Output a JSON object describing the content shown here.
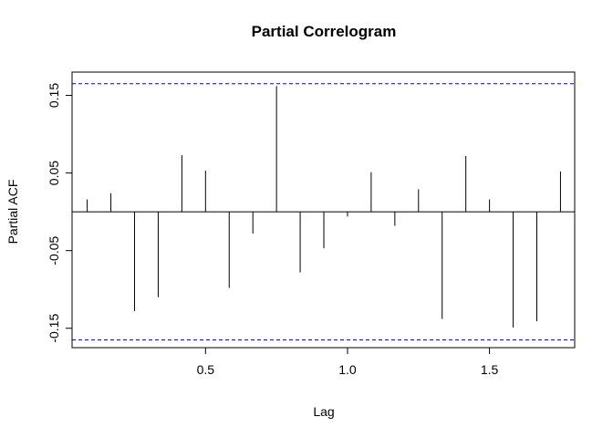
{
  "chart_data": {
    "type": "bar",
    "title": "Partial Correlogram",
    "xlabel": "Lag",
    "ylabel": "Partial ACF",
    "xlim": [
      0.03,
      1.8
    ],
    "ylim": [
      -0.175,
      0.18
    ],
    "x_ticks": [
      0.5,
      1.0,
      1.5
    ],
    "x_tick_labels": [
      "0.5",
      "1.0",
      "1.5"
    ],
    "y_ticks": [
      0.15,
      0.05,
      -0.05,
      -0.15
    ],
    "y_tick_labels": [
      "0.15",
      "0.05",
      "-0.05",
      "-0.15"
    ],
    "confidence_bounds": {
      "upper": 0.165,
      "lower": -0.165,
      "color": "#0000cc"
    },
    "zero_line": 0,
    "grid": false,
    "lags": [
      0.0833,
      0.1667,
      0.25,
      0.3333,
      0.4167,
      0.5,
      0.5833,
      0.6667,
      0.75,
      0.8333,
      0.9167,
      1.0,
      1.0833,
      1.1667,
      1.25,
      1.3333,
      1.4167,
      1.5,
      1.5833,
      1.6667,
      1.75
    ],
    "values": [
      0.016,
      0.024,
      -0.128,
      -0.11,
      0.073,
      0.053,
      -0.098,
      -0.028,
      0.162,
      -0.078,
      -0.047,
      -0.006,
      0.051,
      -0.018,
      0.029,
      -0.138,
      0.072,
      0.016,
      -0.149,
      -0.141,
      0.052
    ]
  }
}
